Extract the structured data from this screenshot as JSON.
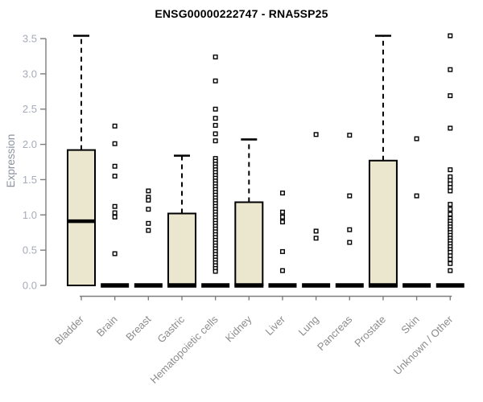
{
  "chart_data": {
    "type": "boxplot",
    "title": "ENSG00000222747 - RNA5SP25",
    "ylabel": "Expression",
    "xlabel": "",
    "ylim": [
      0,
      3.5
    ],
    "ytick_step": 0.5,
    "grid": false,
    "legend": "none",
    "colors": {
      "box_fill": "#EBE6CE",
      "box_stroke": "#000000",
      "axis": "#7E7E7E",
      "ytick_label": "#A6ABB9",
      "xtick_label": "#8C8C8C",
      "title": "#000000"
    },
    "boxes": [
      {
        "label": "Bladder",
        "q1": 0,
        "median": 0.91,
        "q3": 1.92,
        "whisker_low": 0,
        "whisker_high": 3.54,
        "outliers": []
      },
      {
        "label": "Brain",
        "q1": 0,
        "median": 0,
        "q3": 0,
        "whisker_low": 0,
        "whisker_high": 0,
        "outliers": [
          2.26,
          2.01,
          1.69,
          1.55,
          1.12,
          1.03,
          0.97,
          0.45
        ]
      },
      {
        "label": "Breast",
        "q1": 0,
        "median": 0,
        "q3": 0,
        "whisker_low": 0,
        "whisker_high": 0,
        "outliers": [
          1.34,
          1.25,
          1.21,
          1.08,
          0.88,
          0.78
        ]
      },
      {
        "label": "Gastric",
        "q1": 0,
        "median": 0,
        "q3": 1.02,
        "whisker_low": 0,
        "whisker_high": 1.84,
        "outliers": []
      },
      {
        "label": "Hematopoietic cells",
        "q1": 0,
        "median": 0,
        "q3": 0,
        "whisker_low": 0,
        "whisker_high": 0,
        "outliers": [
          3.24,
          2.9,
          2.5,
          2.37,
          2.27,
          2.15,
          2.05,
          1.8,
          1.76,
          1.72,
          1.68,
          1.64,
          1.6,
          1.56,
          1.52,
          1.48,
          1.44,
          1.4,
          1.36,
          1.32,
          1.28,
          1.24,
          1.2,
          1.16,
          1.12,
          1.08,
          1.04,
          1.0,
          0.96,
          0.92,
          0.88,
          0.84,
          0.8,
          0.76,
          0.72,
          0.68,
          0.64,
          0.6,
          0.56,
          0.52,
          0.48,
          0.44,
          0.4,
          0.36,
          0.32,
          0.28,
          0.24,
          0.2
        ]
      },
      {
        "label": "Kidney",
        "q1": 0,
        "median": 0,
        "q3": 1.18,
        "whisker_low": 0,
        "whisker_high": 2.07,
        "outliers": []
      },
      {
        "label": "Liver",
        "q1": 0,
        "median": 0,
        "q3": 0,
        "whisker_low": 0,
        "whisker_high": 0,
        "outliers": [
          1.31,
          1.04,
          0.97,
          0.9,
          0.48,
          0.21
        ]
      },
      {
        "label": "Lung",
        "q1": 0,
        "median": 0,
        "q3": 0,
        "whisker_low": 0,
        "whisker_high": 0,
        "outliers": [
          2.14,
          0.77,
          0.67
        ]
      },
      {
        "label": "Pancreas",
        "q1": 0,
        "median": 0,
        "q3": 0,
        "whisker_low": 0,
        "whisker_high": 0,
        "outliers": [
          2.13,
          1.27,
          0.79,
          0.61
        ]
      },
      {
        "label": "Prostate",
        "q1": 0,
        "median": 0,
        "q3": 1.77,
        "whisker_low": 0,
        "whisker_high": 3.54,
        "outliers": []
      },
      {
        "label": "Skin",
        "q1": 0,
        "median": 0,
        "q3": 0,
        "whisker_low": 0,
        "whisker_high": 0,
        "outliers": [
          2.08,
          1.27
        ]
      },
      {
        "label": "Unknown / Other",
        "q1": 0,
        "median": 0,
        "q3": 0,
        "whisker_low": 0,
        "whisker_high": 0,
        "outliers": [
          3.54,
          3.06,
          2.69,
          2.23,
          1.64,
          1.54,
          1.49,
          1.44,
          1.39,
          1.34,
          1.15,
          1.08,
          1.01,
          0.95,
          0.91,
          0.87,
          0.83,
          0.79,
          0.75,
          0.71,
          0.67,
          0.63,
          0.59,
          0.55,
          0.51,
          0.47,
          0.42,
          0.37,
          0.31,
          0.21
        ]
      }
    ]
  }
}
